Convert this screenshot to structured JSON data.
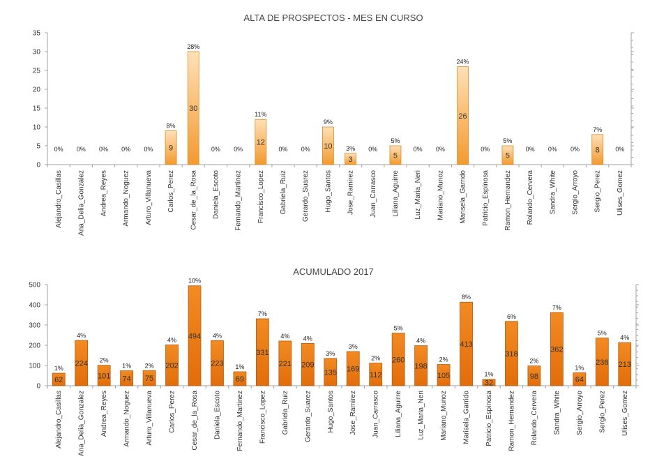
{
  "colors": {
    "bar_light_top": "#FFE0B8",
    "bar_light_bottom": "#F29A2E",
    "bar_light_edge": "#D98A2B",
    "bar_dark_top": "#F28A22",
    "bar_dark_bottom": "#E26D0A",
    "bar_dark_edge": "#B35A0F",
    "axis": "#A0A0A0",
    "text": "#333333"
  },
  "chart_data": [
    {
      "type": "bar",
      "title": "ALTA DE PROSPECTOS - MES EN CURSO",
      "categories": [
        "Alejandro_Casillas",
        "Ana_Delia_Gonzalez",
        "Andrea_Reyes",
        "Armando_Noguez",
        "Arturo_Villanueva",
        "Carlos_Perez",
        "Cesar_de_la_Rosa",
        "Daniela_Escoto",
        "Fernando_Martinez",
        "Francisco_Lopez",
        "Gabriela_Ruiz",
        "Gerardo_Suarez",
        "Hugo_Santos",
        "Jose_Ramirez",
        "Juan_Carrasco",
        "Liliana_Aguirre",
        "Luz_Maria_Neri",
        "Mariano_Munoz",
        "Marisela_Garrido",
        "Patricio_Espinosa",
        "Ramon_Hernandez",
        "Rolando_Cervera",
        "Sandra_White",
        "Sergio_Arroyo",
        "Sergio_Perez",
        "Ulises_Gomez"
      ],
      "values": [
        0,
        0,
        0,
        0,
        0,
        9,
        30,
        0,
        0,
        12,
        0,
        0,
        10,
        3,
        0,
        5,
        0,
        0,
        26,
        0,
        5,
        0,
        0,
        0,
        8,
        0
      ],
      "value_labels": [
        "",
        "",
        "",
        "",
        "",
        "9",
        "30",
        "",
        "",
        "12",
        "",
        "",
        "10",
        "3",
        "",
        "5",
        "",
        "",
        "26",
        "",
        "5",
        "",
        "",
        "",
        "8",
        ""
      ],
      "percent_labels": [
        "0%",
        "0%",
        "0%",
        "0%",
        "0%",
        "8%",
        "28%",
        "0%",
        "0%",
        "11%",
        "0%",
        "0%",
        "9%",
        "3%",
        "0%",
        "5%",
        "0%",
        "0%",
        "24%",
        "0%",
        "5%",
        "0%",
        "0%",
        "0%",
        "7%",
        "0%"
      ],
      "ylim": [
        0,
        35
      ],
      "yticks": [
        "0",
        "5",
        "10",
        "15",
        "20",
        "25",
        "30",
        "35"
      ],
      "grid": false,
      "style": "light"
    },
    {
      "type": "bar",
      "title": "ACUMULADO 2017",
      "categories": [
        "Alejandro_Casillas",
        "Ana_Delia_Gonzalez",
        "Andrea_Reyes",
        "Armando_Noguez",
        "Arturo_Villanueva",
        "Carlos_Perez",
        "Cesar_de_la_Rosa",
        "Daniela_Escoto",
        "Fernando_Martinez",
        "Francisco_Lopez",
        "Gabriela_Ruiz",
        "Gerardo_Suarez",
        "Hugo_Santos",
        "Jose_Ramirez",
        "Juan_Carrasco",
        "Liliana_Aguirre",
        "Luz_Maria_Neri",
        "Mariano_Munoz",
        "Marisela_Garrido",
        "Patricio_Espinosa",
        "Ramon_Hernandez",
        "Rolando_Cervera",
        "Sandra_White",
        "Sergio_Arroyo",
        "Sergio_Perez",
        "Ulises_Gomez"
      ],
      "values": [
        62,
        224,
        101,
        74,
        75,
        202,
        494,
        223,
        69,
        331,
        221,
        209,
        135,
        169,
        112,
        260,
        198,
        105,
        413,
        32,
        318,
        98,
        362,
        64,
        236,
        213
      ],
      "value_labels": [
        "62",
        "224",
        "101",
        "74",
        "75",
        "202",
        "494",
        "223",
        "69",
        "331",
        "221",
        "209",
        "135",
        "169",
        "112",
        "260",
        "198",
        "105",
        "413",
        "32",
        "318",
        "98",
        "362",
        "64",
        "236",
        "213"
      ],
      "percent_labels": [
        "1%",
        "4%",
        "2%",
        "1%",
        "2%",
        "4%",
        "10%",
        "4%",
        "1%",
        "7%",
        "4%",
        "4%",
        "3%",
        "3%",
        "2%",
        "5%",
        "4%",
        "2%",
        "8%",
        "1%",
        "6%",
        "2%",
        "7%",
        "1%",
        "5%",
        "4%"
      ],
      "ylim": [
        0,
        500
      ],
      "yticks": [
        "0",
        "100",
        "200",
        "300",
        "400",
        "500"
      ],
      "grid": false,
      "style": "dark"
    }
  ]
}
